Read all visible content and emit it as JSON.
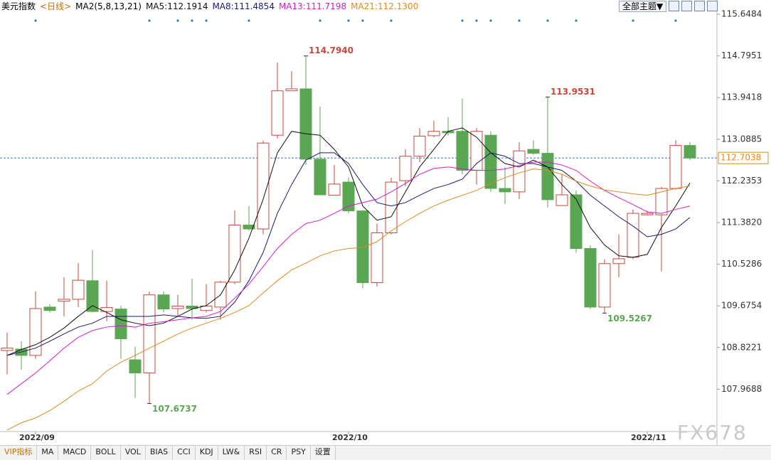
{
  "chart_data": {
    "type": "candlestick",
    "title": "美元指数",
    "period": "<日线>",
    "indicator": "MA2(5,8,13,21)",
    "categories": [
      null,
      null,
      "2022/09",
      null,
      null,
      null,
      null,
      null,
      null,
      null,
      null,
      null,
      null,
      null,
      null,
      null,
      null,
      null,
      null,
      null,
      null,
      null,
      null,
      null,
      "2022/10",
      null,
      null,
      null,
      null,
      null,
      null,
      null,
      null,
      null,
      null,
      null,
      null,
      null,
      null,
      null,
      null,
      null,
      null,
      null,
      null,
      "2022/11",
      null,
      null,
      null
    ],
    "open": [
      108.76,
      108.79,
      108.66,
      109.65,
      109.77,
      109.81,
      110.19,
      109.56,
      109.61,
      108.57,
      108.3,
      109.9,
      109.62,
      109.67,
      109.58,
      109.65,
      110.16,
      111.33,
      111.25,
      113.17,
      114.08,
      114.12,
      112.68,
      111.94,
      112.21,
      111.62,
      110.15,
      111.17,
      112.24,
      112.74,
      113.16,
      113.25,
      113.25,
      112.45,
      113.17,
      112.08,
      112.01,
      112.88,
      112.8,
      111.73,
      111.95,
      110.85,
      109.65,
      110.54,
      110.67,
      111.54,
      111.54,
      112.08,
      112.96
    ],
    "high": [
      109.13,
      108.95,
      109.97,
      109.71,
      110.26,
      110.55,
      110.82,
      110.19,
      109.68,
      108.84,
      109.97,
      109.97,
      109.9,
      110.23,
      110.12,
      110.19,
      111.63,
      111.72,
      113.06,
      114.66,
      114.48,
      114.794,
      113.76,
      112.56,
      112.3,
      111.62,
      111.36,
      112.3,
      112.88,
      113.32,
      113.47,
      113.54,
      113.92,
      113.32,
      113.25,
      112.52,
      113.03,
      113.07,
      113.9531,
      112.37,
      112.04,
      110.92,
      110.63,
      111.14,
      111.65,
      111.62,
      112.11,
      113.07,
      113.03
    ],
    "low": [
      108.27,
      108.37,
      108.59,
      109.54,
      109.46,
      109.65,
      109.54,
      109.36,
      108.59,
      107.79,
      107.6737,
      109.54,
      109.46,
      109.39,
      109.54,
      109.39,
      110.12,
      111.21,
      111.14,
      113.1,
      114.08,
      112.56,
      111.94,
      111.94,
      111.57,
      110.04,
      110.07,
      111.14,
      112.13,
      112.62,
      113.13,
      113.16,
      112.37,
      112.16,
      112.01,
      111.76,
      111.86,
      112.77,
      111.69,
      111.72,
      110.76,
      109.61,
      109.5267,
      110.26,
      110.63,
      111.53,
      110.38,
      112.05,
      112.66
    ],
    "close": [
      108.81,
      108.66,
      109.62,
      109.58,
      109.81,
      110.2,
      109.56,
      109.64,
      109.0,
      108.3,
      109.9,
      109.61,
      109.67,
      109.62,
      109.67,
      110.16,
      111.33,
      111.25,
      113.01,
      114.08,
      114.12,
      112.68,
      111.95,
      112.17,
      111.62,
      110.15,
      111.17,
      112.21,
      112.74,
      113.15,
      113.25,
      113.22,
      112.45,
      113.25,
      112.08,
      112.01,
      112.85,
      112.8,
      111.85,
      111.95,
      110.85,
      109.65,
      110.54,
      110.64,
      111.57,
      111.57,
      112.08,
      112.96,
      112.7038
    ],
    "high_labels": [
      null,
      null,
      null,
      null,
      null,
      null,
      null,
      null,
      null,
      null,
      null,
      null,
      null,
      null,
      null,
      null,
      null,
      null,
      null,
      null,
      null,
      "114.7940",
      null,
      null,
      null,
      null,
      null,
      null,
      null,
      null,
      null,
      null,
      null,
      null,
      null,
      null,
      null,
      null,
      "113.9531",
      null,
      null,
      null,
      null,
      null,
      null,
      null,
      null,
      null,
      null
    ],
    "low_labels": [
      null,
      null,
      null,
      null,
      null,
      null,
      null,
      null,
      null,
      null,
      "107.6737",
      null,
      null,
      null,
      null,
      null,
      null,
      null,
      null,
      null,
      null,
      null,
      null,
      null,
      null,
      null,
      null,
      null,
      null,
      null,
      null,
      null,
      null,
      null,
      null,
      null,
      null,
      null,
      null,
      null,
      null,
      null,
      "109.5267",
      null,
      null,
      null,
      null,
      null,
      null
    ],
    "up_color": "#c8483c",
    "down_color": "#5ba653",
    "series": [
      {
        "name": "MA5:112.1914",
        "color": "#111111",
        "values": [
          108.66,
          108.78,
          108.88,
          109.03,
          109.22,
          109.46,
          109.68,
          109.54,
          109.39,
          109.32,
          109.27,
          109.32,
          109.46,
          109.61,
          109.68,
          109.9,
          110.41,
          111.06,
          111.86,
          112.81,
          113.25,
          113.2,
          113.17,
          112.88,
          112.52,
          111.72,
          111.43,
          111.5,
          112.01,
          112.52,
          112.88,
          113.25,
          113.32,
          113.13,
          112.81,
          112.59,
          112.52,
          112.66,
          112.52,
          112.16,
          111.86,
          111.28,
          110.92,
          110.7,
          110.67,
          110.73,
          111.28,
          111.72,
          112.1914
        ]
      },
      {
        "name": "MA8:111.4854",
        "color": "#1a1a6e",
        "values": [
          108.66,
          108.73,
          108.81,
          108.95,
          109.1,
          109.24,
          109.32,
          109.46,
          109.46,
          109.46,
          109.46,
          109.49,
          109.46,
          109.43,
          109.42,
          109.46,
          109.75,
          110.19,
          110.77,
          111.57,
          112.16,
          112.66,
          112.81,
          112.81,
          112.59,
          112.16,
          111.79,
          111.72,
          111.79,
          111.94,
          112.08,
          112.16,
          112.27,
          112.59,
          112.81,
          112.74,
          112.59,
          112.59,
          112.52,
          112.45,
          112.23,
          111.94,
          111.72,
          111.5,
          111.31,
          111.09,
          111.14,
          111.25,
          111.4854
        ]
      },
      {
        "name": "MA13:111.7198",
        "color": "#d020c8",
        "values": [
          107.86,
          108.08,
          108.3,
          108.55,
          108.81,
          109.03,
          109.17,
          109.24,
          109.27,
          109.24,
          109.32,
          109.35,
          109.39,
          109.43,
          109.46,
          109.56,
          109.83,
          110.12,
          110.48,
          110.85,
          111.14,
          111.36,
          111.43,
          111.57,
          111.72,
          111.79,
          111.86,
          112.01,
          112.18,
          112.37,
          112.49,
          112.52,
          112.48,
          112.45,
          112.45,
          112.48,
          112.55,
          112.62,
          112.62,
          112.56,
          112.45,
          112.23,
          112.04,
          111.89,
          111.75,
          111.6,
          111.57,
          111.65,
          111.7198
        ]
      },
      {
        "name": "MA21:112.1300",
        "color": "#e08a1e",
        "values": [
          107.13,
          107.28,
          107.38,
          107.53,
          107.72,
          107.93,
          108.08,
          108.34,
          108.52,
          108.66,
          108.81,
          108.95,
          109.1,
          109.22,
          109.32,
          109.42,
          109.54,
          109.68,
          109.94,
          110.19,
          110.41,
          110.55,
          110.7,
          110.8,
          110.85,
          110.87,
          110.99,
          111.21,
          111.4,
          111.57,
          111.72,
          111.84,
          111.94,
          112.04,
          112.18,
          112.3,
          112.4,
          112.48,
          112.45,
          112.37,
          112.23,
          112.13,
          112.05,
          112.01,
          111.97,
          111.94,
          112.01,
          112.08,
          112.13
        ]
      }
    ],
    "ylim": [
      107.1,
      115.94
    ],
    "yticks": [
      115.6484,
      114.7951,
      113.9418,
      113.0885,
      112.2353,
      {
        "value": 111.382,
        "label": "111.3820"
      },
      110.5286,
      109.6754,
      108.8221,
      107.9688
    ],
    "last_price": 112.7038,
    "last_price_color": "#e08a1e"
  },
  "ui": {
    "theme_button": "全部主题▼",
    "tabs": [
      "VIP指标",
      "MA",
      "MACD",
      "BOLL",
      "VOL",
      "BIAS",
      "CCI",
      "KDJ",
      "LW&",
      "RSI",
      "CR",
      "PSY",
      "设置"
    ],
    "watermark": "FX678"
  }
}
